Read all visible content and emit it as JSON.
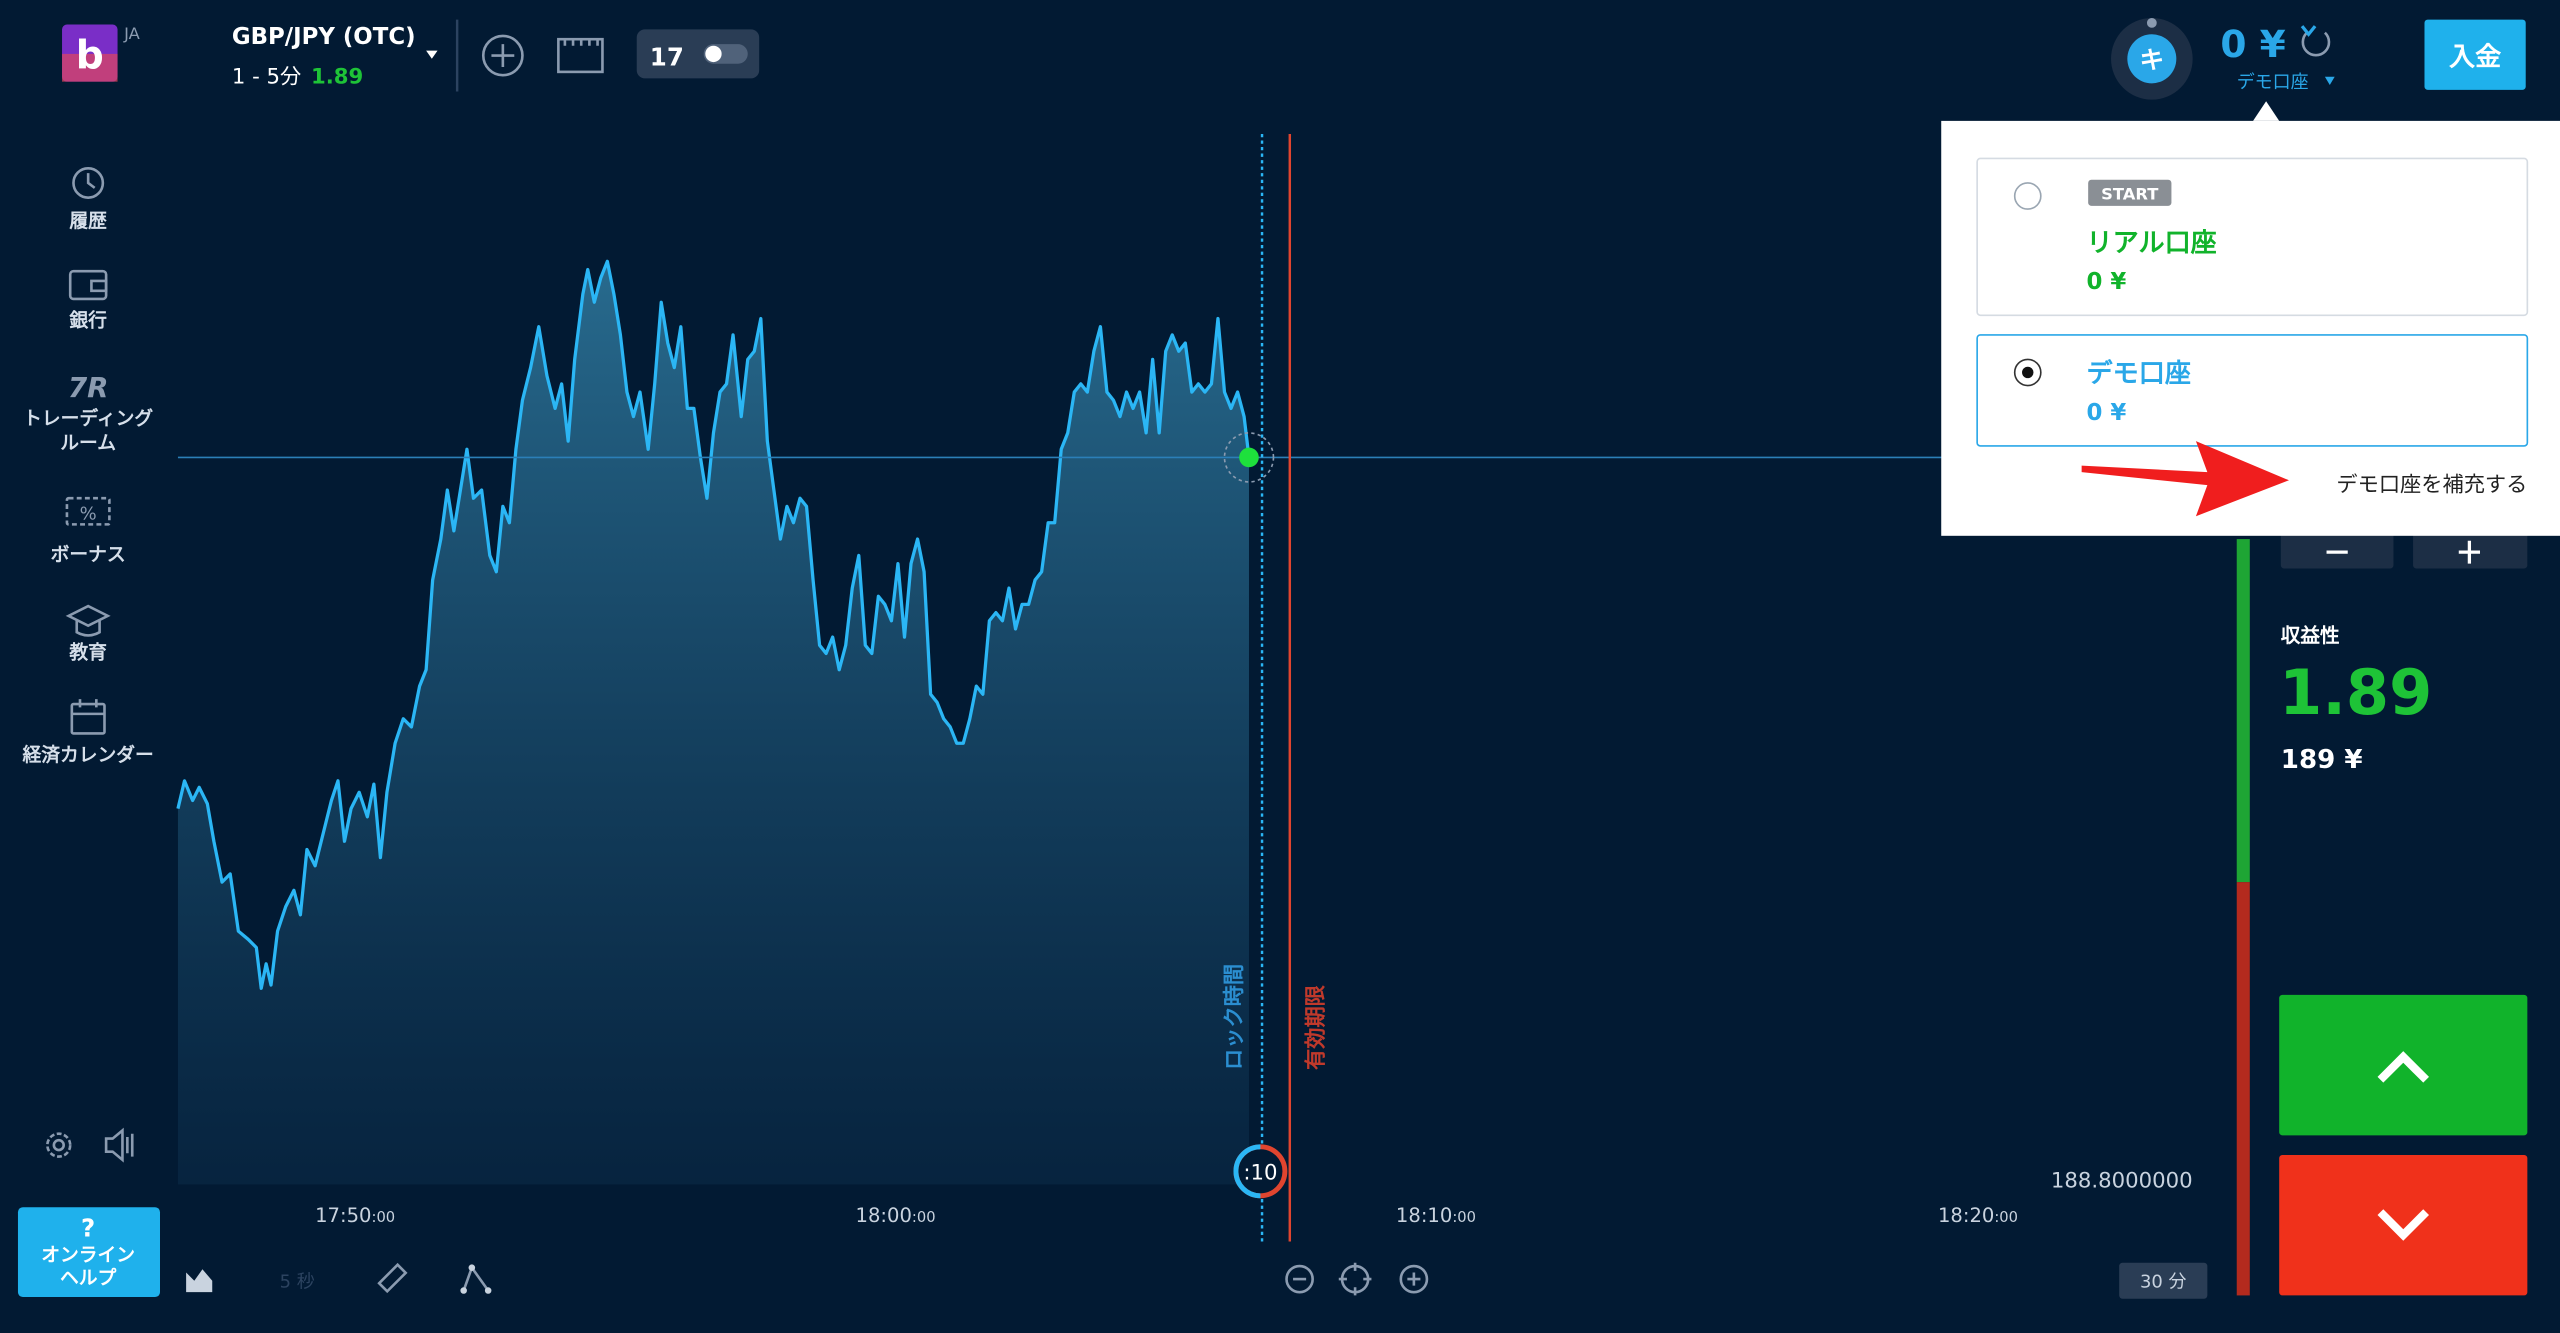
{
  "header": {
    "logo_letter": "b",
    "language": "JA",
    "asset": "GBP/JPY (OTC)",
    "timeframe": "1 - 5分",
    "payout": "1.89",
    "avatar_letter": "キ",
    "balance": "0 ¥",
    "account_type": "デモ口座",
    "deposit_button": "入金"
  },
  "sidebar": {
    "items": [
      {
        "lines": [
          "履歴"
        ]
      },
      {
        "lines": [
          "銀行"
        ]
      },
      {
        "icon": "7R",
        "lines": [
          "トレーディング",
          "ルーム"
        ]
      },
      {
        "lines": [
          "ボーナス"
        ]
      },
      {
        "lines": [
          "教育"
        ]
      },
      {
        "lines": [
          "経済カレンダー"
        ]
      }
    ]
  },
  "help_button": {
    "icon": "?",
    "lines": [
      "オンライン",
      "ヘルプ"
    ]
  },
  "toolbar": {
    "interval": "5 秒",
    "zoom_interval": "30 分"
  },
  "chart": {
    "x_tick_labels": [
      {
        "time": "17:50",
        "seconds": ":00"
      },
      {
        "time": "18:00",
        "seconds": ":00"
      },
      {
        "time": "18:10",
        "seconds": ":00"
      },
      {
        "time": "18:20",
        "seconds": ":00"
      }
    ],
    "price_label": "188.8000000",
    "lock_label": "ロック時間",
    "expiry_label": "有効期限",
    "timer": ":10"
  },
  "trade_panel": {
    "profit_label": "収益性",
    "profit_rate": "1.89",
    "payout_amount": "189 ¥"
  },
  "account_menu": {
    "accounts": [
      {
        "badge": "START",
        "name": "リアル口座",
        "balance": "0 ¥"
      },
      {
        "name": "デモ口座",
        "balance": "0 ¥"
      }
    ],
    "refill_link": "デモ口座を補充する"
  }
}
